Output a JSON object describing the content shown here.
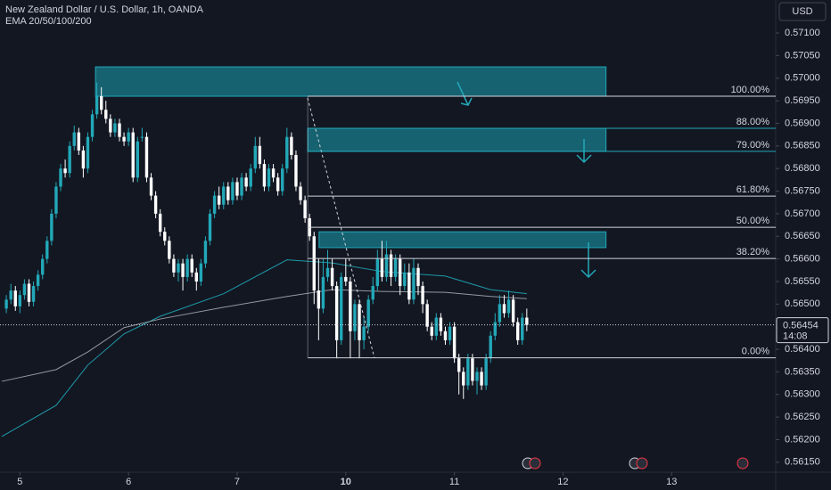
{
  "header": {
    "symbol": "New Zealand Dollar / U.S. Dollar, 1h, OANDA",
    "indicator": "EMA 20/50/100/200",
    "currency": "USD"
  },
  "chart_data": {
    "type": "candlestick",
    "up_color": "#22a8b8",
    "down_color": "#ffffff",
    "x": [
      -3,
      -2,
      -1,
      0,
      1,
      2,
      3,
      4,
      5,
      6,
      7,
      8,
      9,
      10,
      11,
      12,
      13,
      14,
      15,
      16,
      17,
      18,
      19,
      20,
      21,
      22,
      23,
      24,
      25,
      26,
      27,
      28,
      29,
      30,
      31,
      32,
      33,
      34,
      35,
      36,
      37,
      38,
      39,
      40,
      41,
      42,
      43,
      44,
      45,
      46,
      47,
      48,
      49,
      50,
      51,
      52,
      53,
      54,
      55,
      56,
      57,
      58,
      59,
      60,
      61,
      62,
      63,
      64,
      65,
      66,
      67,
      68,
      69,
      70,
      71,
      72,
      73,
      74,
      75,
      76,
      77,
      78,
      79,
      80,
      81,
      82,
      83,
      84,
      85,
      86,
      87,
      88,
      89,
      90,
      91,
      92,
      93,
      94,
      95,
      96,
      97,
      98,
      99,
      100,
      101,
      102,
      103,
      104,
      105,
      106,
      107,
      108,
      109,
      110,
      111,
      112
    ],
    "open": [
      0.5649,
      0.5651,
      0.5653,
      0.56495,
      0.5652,
      0.56545,
      0.56505,
      0.5654,
      0.56565,
      0.566,
      0.5664,
      0.567,
      0.5676,
      0.568,
      0.5679,
      0.5685,
      0.5688,
      0.5684,
      0.568,
      0.5687,
      0.5692,
      0.5696,
      0.5693,
      0.5691,
      0.5688,
      0.569,
      0.5687,
      0.5686,
      0.5688,
      0.5678,
      0.5687,
      0.5687,
      0.5678,
      0.5674,
      0.567,
      0.5666,
      0.5664,
      0.566,
      0.5657,
      0.5659,
      0.5656,
      0.566,
      0.5657,
      0.5655,
      0.5659,
      0.5664,
      0.567,
      0.5674,
      0.5672,
      0.5676,
      0.5673,
      0.5677,
      0.5674,
      0.5678,
      0.5676,
      0.568,
      0.5685,
      0.5681,
      0.5676,
      0.568,
      0.5678,
      0.5675,
      0.568,
      0.5687,
      0.5683,
      0.5676,
      0.5673,
      0.5669,
      0.5665,
      0.5653,
      0.5649,
      0.5656,
      0.5658,
      0.5654,
      0.5642,
      0.5656,
      0.5655,
      0.5644,
      0.565,
      0.5642,
      0.5645,
      0.5651,
      0.5654,
      0.566,
      0.5656,
      0.5661,
      0.5656,
      0.566,
      0.5654,
      0.5657,
      0.5651,
      0.5658,
      0.5654,
      0.565,
      0.5645,
      0.5643,
      0.5647,
      0.5644,
      0.5642,
      0.5645,
      0.5638,
      0.5635,
      0.5632,
      0.5638,
      0.5633,
      0.5635,
      0.5632,
      0.5638,
      0.5643,
      0.5646,
      0.565,
      0.5648,
      0.5651,
      0.5646,
      0.5642,
      0.5647
    ],
    "high": [
      0.5652,
      0.56545,
      0.5654,
      0.5653,
      0.56555,
      0.56555,
      0.5655,
      0.56575,
      0.5661,
      0.5665,
      0.5671,
      0.5677,
      0.5681,
      0.5682,
      0.5686,
      0.56895,
      0.5689,
      0.5685,
      0.5688,
      0.5693,
      0.5699,
      0.5698,
      0.5695,
      0.5692,
      0.5691,
      0.5691,
      0.5688,
      0.5689,
      0.5689,
      0.5687,
      0.5689,
      0.5688,
      0.5679,
      0.5675,
      0.5671,
      0.5667,
      0.5665,
      0.5661,
      0.566,
      0.566,
      0.5661,
      0.5661,
      0.5658,
      0.566,
      0.5665,
      0.5671,
      0.5675,
      0.5676,
      0.5677,
      0.5677,
      0.5678,
      0.5678,
      0.5679,
      0.5679,
      0.5681,
      0.5687,
      0.5687,
      0.5682,
      0.5681,
      0.5681,
      0.5679,
      0.5681,
      0.5689,
      0.5688,
      0.5684,
      0.5677,
      0.5674,
      0.567,
      0.5666,
      0.566,
      0.566,
      0.5662,
      0.566,
      0.5655,
      0.5657,
      0.566,
      0.5656,
      0.5651,
      0.5651,
      0.5647,
      0.5652,
      0.5656,
      0.5662,
      0.5664,
      0.5664,
      0.5662,
      0.5661,
      0.5661,
      0.5659,
      0.5659,
      0.566,
      0.5659,
      0.5655,
      0.5651,
      0.5646,
      0.5648,
      0.5648,
      0.5645,
      0.5646,
      0.5646,
      0.5639,
      0.5636,
      0.5639,
      0.5639,
      0.5636,
      0.5636,
      0.5639,
      0.5644,
      0.5648,
      0.5652,
      0.5652,
      0.5653,
      0.5652,
      0.5647,
      0.5648,
      0.5649
    ],
    "low": [
      0.5648,
      0.565,
      0.56485,
      0.5648,
      0.5651,
      0.56495,
      0.56495,
      0.5653,
      0.56555,
      0.5659,
      0.5663,
      0.5669,
      0.5675,
      0.5678,
      0.5678,
      0.5684,
      0.5683,
      0.5678,
      0.5679,
      0.5686,
      0.5691,
      0.5692,
      0.569,
      0.5687,
      0.5687,
      0.5686,
      0.5685,
      0.5685,
      0.5677,
      0.5677,
      0.5686,
      0.5677,
      0.5673,
      0.5669,
      0.5665,
      0.5663,
      0.5659,
      0.5656,
      0.5655,
      0.5653,
      0.5655,
      0.5656,
      0.5653,
      0.5654,
      0.5658,
      0.5663,
      0.5669,
      0.5671,
      0.5671,
      0.5672,
      0.5672,
      0.5673,
      0.5673,
      0.5675,
      0.5675,
      0.5679,
      0.568,
      0.5675,
      0.5675,
      0.5677,
      0.5674,
      0.5674,
      0.5679,
      0.5682,
      0.5675,
      0.5672,
      0.5668,
      0.5664,
      0.565,
      0.5642,
      0.5648,
      0.5655,
      0.5653,
      0.5638,
      0.5641,
      0.5654,
      0.5638,
      0.5642,
      0.5638,
      0.564,
      0.5644,
      0.565,
      0.5653,
      0.5655,
      0.5655,
      0.5654,
      0.5655,
      0.5652,
      0.5653,
      0.565,
      0.565,
      0.5652,
      0.5648,
      0.5644,
      0.5642,
      0.5642,
      0.5643,
      0.5641,
      0.5641,
      0.5637,
      0.563,
      0.5629,
      0.5631,
      0.5632,
      0.563,
      0.5631,
      0.5631,
      0.5637,
      0.5642,
      0.5645,
      0.5647,
      0.5647,
      0.5645,
      0.5641,
      0.5641,
      0.5644
    ],
    "close": [
      0.5651,
      0.5653,
      0.56495,
      0.5652,
      0.56545,
      0.56505,
      0.5654,
      0.56565,
      0.566,
      0.5664,
      0.567,
      0.5676,
      0.568,
      0.5679,
      0.5685,
      0.5688,
      0.5684,
      0.568,
      0.5687,
      0.5692,
      0.5696,
      0.5693,
      0.5691,
      0.5688,
      0.569,
      0.5687,
      0.5686,
      0.5688,
      0.5678,
      0.5686,
      0.5687,
      0.5678,
      0.5674,
      0.567,
      0.5666,
      0.5664,
      0.566,
      0.5657,
      0.5659,
      0.5656,
      0.566,
      0.5657,
      0.5655,
      0.5659,
      0.5664,
      0.567,
      0.5674,
      0.5672,
      0.5676,
      0.5673,
      0.5677,
      0.5674,
      0.5678,
      0.5676,
      0.568,
      0.5685,
      0.5681,
      0.5676,
      0.568,
      0.5678,
      0.5675,
      0.568,
      0.5687,
      0.5683,
      0.5676,
      0.5673,
      0.5669,
      0.5665,
      0.5653,
      0.5649,
      0.5656,
      0.5658,
      0.5654,
      0.5642,
      0.5656,
      0.5655,
      0.5644,
      0.565,
      0.5642,
      0.5645,
      0.5651,
      0.5654,
      0.566,
      0.5656,
      0.5661,
      0.5656,
      0.566,
      0.5654,
      0.5657,
      0.5651,
      0.5658,
      0.5654,
      0.565,
      0.5645,
      0.5643,
      0.5647,
      0.5644,
      0.5642,
      0.5645,
      0.5638,
      0.5635,
      0.5632,
      0.5638,
      0.5633,
      0.5635,
      0.5632,
      0.5638,
      0.5643,
      0.5646,
      0.565,
      0.5648,
      0.5651,
      0.5646,
      0.5642,
      0.5647,
      0.56454
    ],
    "ema": [
      {
        "color": "#1e9aa8",
        "x": [
          -4,
          8,
          15,
          23,
          31,
          45,
          59,
          69,
          80,
          94,
          104,
          112
        ],
        "values": [
          0.56207,
          0.56276,
          0.56365,
          0.56434,
          0.56473,
          0.56523,
          0.56598,
          0.56591,
          0.56572,
          0.56562,
          0.56532,
          0.56523
        ]
      },
      {
        "color": "#9598a1",
        "x": [
          -4,
          8,
          15,
          23,
          31,
          45,
          59,
          69,
          80,
          94,
          104,
          112
        ],
        "values": [
          0.56329,
          0.56355,
          0.56394,
          0.56448,
          0.56467,
          0.56493,
          0.56517,
          0.56532,
          0.56528,
          0.56526,
          0.56517,
          0.56512
        ]
      }
    ],
    "levels": [
      {
        "label": "100.00%",
        "value": 0.5696,
        "color": "#d1d4dc"
      },
      {
        "label": "88.00%",
        "value": 0.56889,
        "color": "#22a8b8"
      },
      {
        "label": "79.00%",
        "value": 0.56838,
        "color": "#22a8b8"
      },
      {
        "label": "61.80%",
        "value": 0.56739,
        "color": "#d1d4dc"
      },
      {
        "label": "50.00%",
        "value": 0.5667,
        "color": "#d1d4dc"
      },
      {
        "label": "38.20%",
        "value": 0.56601,
        "color": "#d1d4dc"
      },
      {
        "label": "0.00%",
        "value": 0.56381,
        "color": "#d1d4dc"
      }
    ],
    "levels_x": 63.6,
    "zones": [
      {
        "x": [
          16.7,
          129.5
        ],
        "y": [
          0.5696,
          0.57025
        ]
      },
      {
        "x": [
          63.6,
          129.5
        ],
        "y": [
          0.56838,
          0.56889
        ]
      },
      {
        "x": [
          66.1,
          129.5
        ],
        "y": [
          0.56625,
          0.5666
        ]
      }
    ],
    "last_price": 0.56454,
    "countdown": "14:08",
    "xlim": [
      -4.4,
      167
    ],
    "xticks": [
      {
        "value": 0,
        "label": "5"
      },
      {
        "value": 24,
        "label": "6"
      },
      {
        "value": 48,
        "label": "7"
      },
      {
        "value": 72,
        "label": "10"
      },
      {
        "value": 96,
        "label": "11"
      },
      {
        "value": 120,
        "label": "12"
      },
      {
        "value": 144,
        "label": "13"
      }
    ],
    "ylim": [
      0.56128,
      0.57173
    ],
    "yticks": [
      {
        "value": 0.5615,
        "label": "0.56150"
      },
      {
        "value": 0.562,
        "label": "0.56200"
      },
      {
        "value": 0.5625,
        "label": "0.56250"
      },
      {
        "value": 0.563,
        "label": "0.56300"
      },
      {
        "value": 0.5635,
        "label": "0.56350"
      },
      {
        "value": 0.564,
        "label": "0.56400"
      },
      {
        "value": 0.5645,
        "label": "0.56450"
      },
      {
        "value": 0.565,
        "label": "0.56500"
      },
      {
        "value": 0.5655,
        "label": "0.56550"
      },
      {
        "value": 0.566,
        "label": "0.56600"
      },
      {
        "value": 0.5665,
        "label": "0.56650"
      },
      {
        "value": 0.567,
        "label": "0.56700"
      },
      {
        "value": 0.5675,
        "label": "0.56750"
      },
      {
        "value": 0.568,
        "label": "0.56800"
      },
      {
        "value": 0.5685,
        "label": "0.56850"
      },
      {
        "value": 0.569,
        "label": "0.56900"
      },
      {
        "value": 0.5695,
        "label": "0.56950"
      },
      {
        "value": 0.57,
        "label": "0.57000"
      },
      {
        "value": 0.5705,
        "label": "0.57050"
      },
      {
        "value": 0.571,
        "label": "0.57100"
      }
    ]
  }
}
